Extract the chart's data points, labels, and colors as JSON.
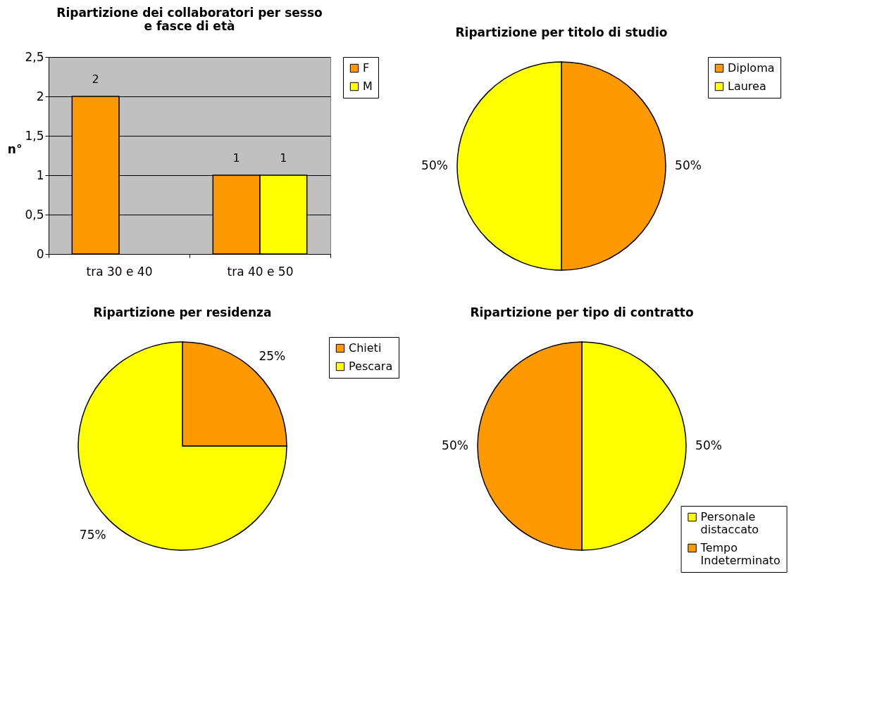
{
  "chart_data": [
    {
      "type": "bar",
      "title": "Ripartizione dei collaboratori per sesso e fasce di età",
      "ylabel": "n°",
      "categories": [
        "tra 30 e 40",
        "tra 40 e 50"
      ],
      "series": [
        {
          "name": "F",
          "color": "#ff9900",
          "values": [
            2,
            1
          ],
          "value_labels": [
            "2",
            "1"
          ]
        },
        {
          "name": "M",
          "color": "#ffff00",
          "values": [
            null,
            1
          ],
          "value_labels": [
            null,
            "1"
          ]
        }
      ],
      "ylim": [
        0,
        2.5
      ],
      "yticks": [
        0,
        {
          "value": 0.5,
          "label": "0,5"
        },
        1,
        {
          "value": 1.5,
          "label": "1,5"
        },
        2,
        {
          "value": 2.5,
          "label": "2,5"
        }
      ],
      "grid": "y",
      "legend": "right"
    },
    {
      "type": "pie",
      "title": "Ripartizione per titolo di studio",
      "categories": [
        "Diploma",
        "Laurea"
      ],
      "values": [
        50,
        50
      ],
      "colors": [
        "#ff9900",
        "#ffff00"
      ],
      "value_labels": [
        "50%",
        "50%"
      ],
      "legend": "right"
    },
    {
      "type": "pie",
      "title": "Ripartizione per residenza",
      "categories": [
        "Chieti",
        "Pescara"
      ],
      "values": [
        25,
        75
      ],
      "colors": [
        "#ff9900",
        "#ffff00"
      ],
      "value_labels": [
        "25%",
        "75%"
      ],
      "legend": "right"
    },
    {
      "type": "pie",
      "title": "Ripartizione per tipo di contratto",
      "categories": [
        "Personale distaccato",
        "Tempo Indeterminato"
      ],
      "values": [
        50,
        50
      ],
      "colors": [
        "#ffff00",
        "#ff9900"
      ],
      "value_labels": [
        "50%",
        "50%"
      ],
      "legend": "bottom right"
    }
  ]
}
